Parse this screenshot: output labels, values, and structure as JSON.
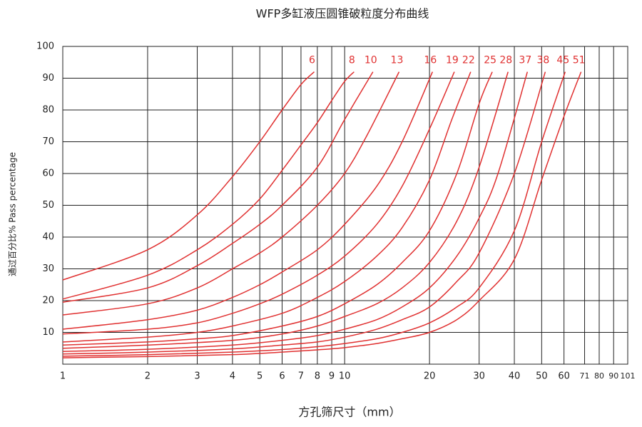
{
  "chart_data": {
    "type": "line",
    "title": "WFP多缸液压圆锥破粒度分布曲线",
    "x_label": "方孔筛尺寸（mm）",
    "y_label": "通过百分比% Pass percentage",
    "log_x": true,
    "grid": true,
    "xlim": [
      1,
      101
    ],
    "ylim": [
      0,
      100
    ],
    "xticks": [
      1,
      2,
      3,
      4,
      5,
      6,
      7,
      8,
      9,
      10,
      20,
      30,
      40,
      50,
      60,
      71,
      80,
      90,
      101
    ],
    "yticks": [
      10,
      20,
      30,
      40,
      50,
      60,
      70,
      80,
      90,
      100
    ],
    "series": [
      {
        "name": "6",
        "color": "#e03030",
        "x": [
          1,
          2,
          3,
          4,
          5,
          6,
          7,
          7.8
        ],
        "values": [
          26.5,
          36,
          47,
          59,
          70,
          80,
          88,
          92
        ]
      },
      {
        "name": "8",
        "color": "#e03030",
        "x": [
          1,
          2,
          3,
          4,
          5,
          6,
          7,
          8,
          9,
          10,
          10.8
        ],
        "values": [
          20.5,
          28,
          36,
          44,
          52,
          61,
          69,
          76,
          83,
          89,
          92
        ]
      },
      {
        "name": "10",
        "color": "#e03030",
        "x": [
          1,
          2,
          3,
          4,
          5,
          6,
          8,
          10,
          12.6
        ],
        "values": [
          19.5,
          24,
          31,
          38,
          44,
          50,
          62,
          77,
          92
        ]
      },
      {
        "name": "13",
        "color": "#e03030",
        "x": [
          1,
          2,
          3,
          4,
          5,
          6,
          8,
          10,
          12,
          15.6
        ],
        "values": [
          15.5,
          19,
          24,
          30,
          35,
          40,
          50,
          60,
          72,
          92
        ]
      },
      {
        "name": "16",
        "color": "#e03030",
        "x": [
          1,
          2,
          3,
          4,
          5,
          6,
          8,
          10,
          13,
          16,
          20.5
        ],
        "values": [
          11,
          14,
          17,
          21,
          25,
          29,
          36,
          44,
          56,
          70,
          92
        ]
      },
      {
        "name": "19",
        "color": "#e03030",
        "x": [
          1,
          2,
          3,
          4,
          5,
          6,
          8,
          10,
          13,
          16,
          20,
          24.5
        ],
        "values": [
          9.5,
          11,
          13,
          16,
          19,
          22,
          28,
          34,
          44,
          56,
          74,
          92
        ]
      },
      {
        "name": "22",
        "color": "#e03030",
        "x": [
          1,
          2,
          3,
          4,
          6,
          8,
          10,
          13,
          16,
          20,
          24,
          28
        ],
        "values": [
          7,
          8.5,
          10,
          12,
          16,
          21,
          26,
          34,
          43,
          58,
          77,
          92
        ]
      },
      {
        "name": "25",
        "color": "#e03030",
        "x": [
          1,
          2,
          3,
          4,
          6,
          8,
          10,
          13,
          16,
          20,
          25,
          30,
          33.4
        ],
        "values": [
          6,
          7,
          8,
          9,
          12,
          15,
          19,
          25,
          32,
          42,
          60,
          82,
          92
        ]
      },
      {
        "name": "28",
        "color": "#e03030",
        "x": [
          1,
          2,
          4,
          6,
          8,
          10,
          13,
          16,
          20,
          25,
          30,
          38
        ],
        "values": [
          5,
          6,
          7.5,
          9.5,
          12,
          15,
          19,
          24,
          32,
          45,
          62,
          92
        ]
      },
      {
        "name": "37",
        "color": "#e03030",
        "x": [
          1,
          2,
          4,
          6,
          8,
          10,
          13,
          16,
          20,
          25,
          30,
          35,
          44.5
        ],
        "values": [
          4,
          4.7,
          6,
          7.5,
          9,
          11,
          14,
          18,
          24,
          34,
          46,
          60,
          92
        ]
      },
      {
        "name": "38",
        "color": "#e03030",
        "x": [
          1,
          2,
          4,
          6,
          8,
          10,
          13,
          16,
          20,
          25,
          30,
          40,
          51.5
        ],
        "values": [
          3.2,
          3.8,
          4.8,
          6,
          7,
          8.5,
          11,
          14,
          18,
          26,
          35,
          60,
          92
        ]
      },
      {
        "name": "45",
        "color": "#e03030",
        "x": [
          1,
          2,
          4,
          6,
          8,
          10,
          13,
          16,
          20,
          25,
          30,
          40,
          50,
          60.6
        ],
        "values": [
          2.5,
          3,
          3.8,
          4.6,
          5.5,
          6.5,
          8,
          10,
          13,
          18,
          24,
          42,
          70,
          92
        ]
      },
      {
        "name": "51",
        "color": "#e03030",
        "x": [
          1,
          2,
          4,
          6,
          8,
          10,
          13,
          16,
          20,
          25,
          30,
          40,
          50,
          60,
          69
        ],
        "values": [
          2,
          2.4,
          3,
          3.8,
          4.5,
          5.2,
          6.5,
          8,
          10,
          14,
          20,
          33,
          58,
          78,
          92
        ]
      }
    ]
  }
}
